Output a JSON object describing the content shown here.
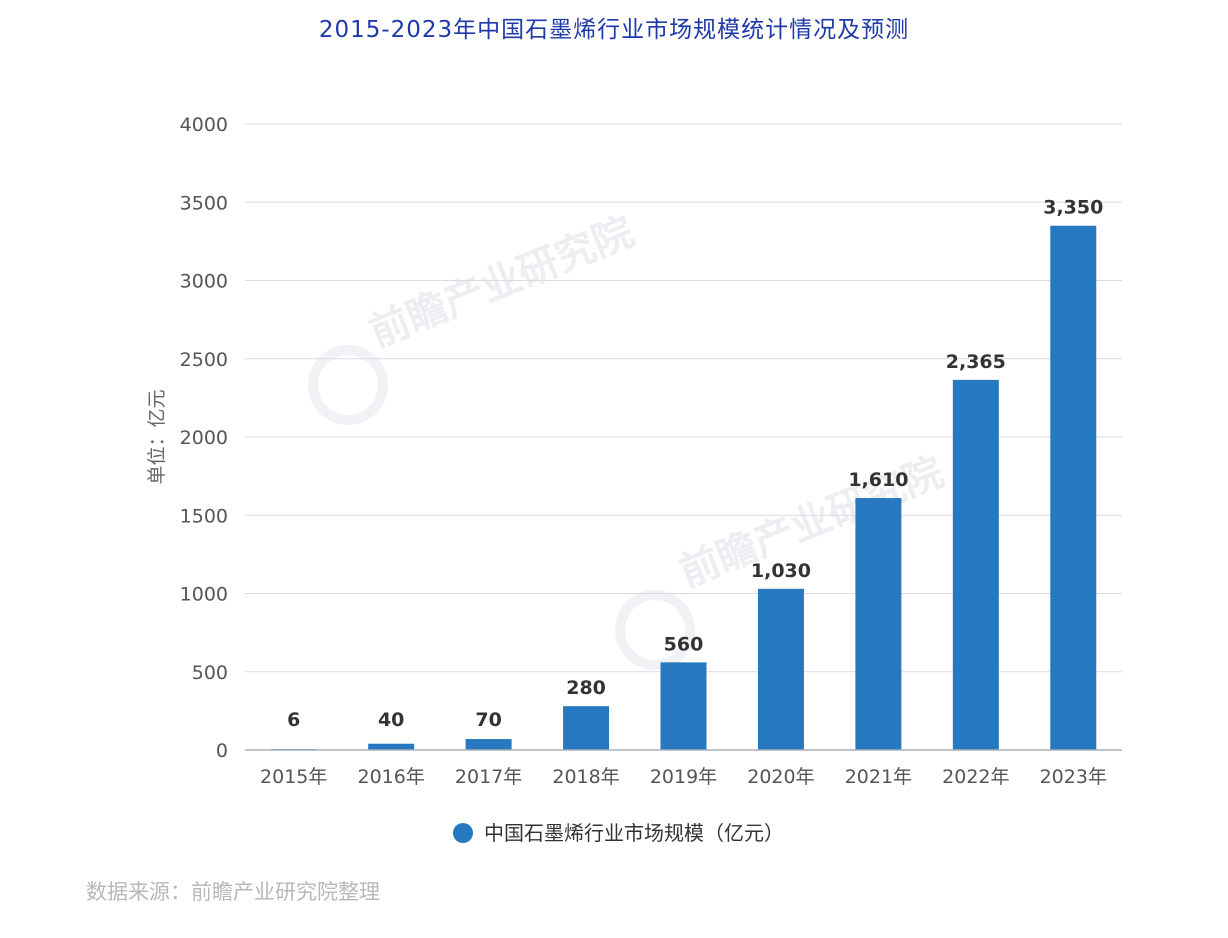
{
  "title": "2015-2023年中国石墨烯行业市场规模统计情况及预测",
  "source": "数据来源：前瞻产业研究院整理",
  "watermark_text": "前瞻产业研究院",
  "colors": {
    "bar": "#2779bf",
    "title": "#1f3aa8",
    "grid": "#d9dce3",
    "text": "#555555"
  },
  "chart_data": {
    "type": "bar",
    "categories": [
      "2015年",
      "2016年",
      "2017年",
      "2018年",
      "2019年",
      "2020年",
      "2021年",
      "2022年",
      "2023年"
    ],
    "series": [
      {
        "name": "中国石墨烯行业市场规模（亿元）",
        "values": [
          6,
          40,
          70,
          280,
          560,
          1030,
          1610,
          2365,
          3350
        ]
      }
    ],
    "data_labels": [
      "6",
      "40",
      "70",
      "280",
      "560",
      "1,030",
      "1,610",
      "2,365",
      "3,350"
    ],
    "ylabel": "单位：亿元",
    "xlabel": "",
    "ylim": [
      0,
      4000
    ],
    "yticks": [
      0,
      500,
      1000,
      1500,
      2000,
      2500,
      3000,
      3500,
      4000
    ],
    "grid": true,
    "legend": "bottom-center"
  }
}
